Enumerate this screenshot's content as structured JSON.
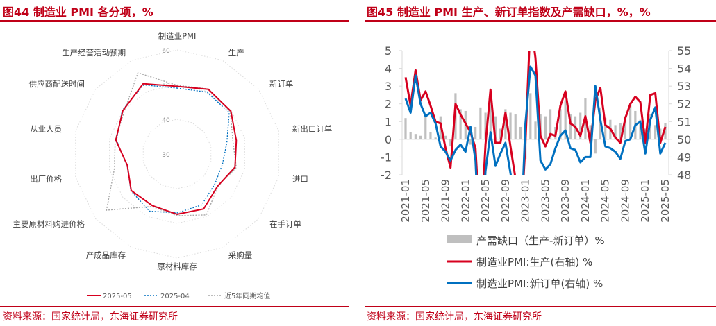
{
  "left": {
    "title": "图44  制造业 PMI 各分项，%",
    "source": "资料来源：国家统计局，东海证券研究所"
  },
  "right": {
    "title": "图45  制造业 PMI 生产、新订单指数及产需缺口，%，%",
    "source": "资料来源：国家统计局，东海证券研究所"
  },
  "colors": {
    "accent": "#c00018",
    "red": "#d7001f",
    "blue": "#0070c0",
    "gray": "#bfbfbf",
    "avg": "#a6a6a6"
  },
  "chart_data": [
    {
      "type": "radar",
      "title": "",
      "axes": [
        "制造业PMI",
        "生产",
        "新订单",
        "新出口订单",
        "进口",
        "在手订单",
        "采购量",
        "原材料库存",
        "产成品库存",
        "主要原材料购进价格",
        "出厂价格",
        "从业人员",
        "供应商配送时间",
        "生产经营活动预期"
      ],
      "range": [
        30,
        60
      ],
      "ticks": [
        "30",
        "40",
        "50",
        "60"
      ],
      "legend_position": "bottom",
      "series": [
        {
          "name": "2025-05",
          "style": "solid",
          "values": [
            49.5,
            50.7,
            49.8,
            47.5,
            47.1,
            44.9,
            47.6,
            47.4,
            46.5,
            46.9,
            44.7,
            48.1,
            50.0,
            52.5
          ]
        },
        {
          "name": "2025-04",
          "style": "dotted",
          "values": [
            49.0,
            49.8,
            49.2,
            44.7,
            43.4,
            43.9,
            46.3,
            47.0,
            48.3,
            47.0,
            44.8,
            47.9,
            50.2,
            52.1
          ]
        },
        {
          "name": "近5年同期均值",
          "style": "dotted",
          "values": [
            49.8,
            50.8,
            49.6,
            46.5,
            47.5,
            45.0,
            49.5,
            47.8,
            46.8,
            56.0,
            48.5,
            48.3,
            49.5,
            56.0
          ]
        }
      ]
    },
    {
      "type": "bar+line",
      "title": "",
      "x": [
        "2021-01",
        "2021-02",
        "2021-03",
        "2021-04",
        "2021-05",
        "2021-06",
        "2021-07",
        "2021-08",
        "2021-09",
        "2021-10",
        "2021-11",
        "2021-12",
        "2022-01",
        "2022-02",
        "2022-03",
        "2022-04",
        "2022-05",
        "2022-06",
        "2022-07",
        "2022-08",
        "2022-09",
        "2022-10",
        "2022-11",
        "2022-12",
        "2023-01",
        "2023-02",
        "2023-03",
        "2023-04",
        "2023-05",
        "2023-06",
        "2023-07",
        "2023-08",
        "2023-09",
        "2023-10",
        "2023-11",
        "2023-12",
        "2024-01",
        "2024-02",
        "2024-03",
        "2024-04",
        "2024-05",
        "2024-06",
        "2024-07",
        "2024-08",
        "2024-09",
        "2024-10",
        "2024-11",
        "2024-12",
        "2025-01",
        "2025-02",
        "2025-03",
        "2025-04",
        "2025-05"
      ],
      "xtick_labels": [
        "2021-01",
        "2021-05",
        "2021-09",
        "2022-01",
        "2022-05",
        "2022-09",
        "2023-01",
        "2023-05",
        "2023-09",
        "2024-01",
        "2024-05",
        "2024-09",
        "2025-01",
        "2025-05"
      ],
      "y_left": {
        "range": [
          -2,
          5
        ],
        "ticks": [
          "-2",
          "-1",
          "0",
          "1",
          "2",
          "3",
          "4",
          "5"
        ]
      },
      "y_right": {
        "range": [
          48,
          55
        ],
        "ticks": [
          "48",
          "49",
          "50",
          "51",
          "52",
          "53",
          "54",
          "55"
        ]
      },
      "legend_position": "bottom",
      "series": [
        {
          "name": "产需缺口（生产-新订单）%",
          "type": "bar",
          "axis": "left",
          "values": [
            1.2,
            0.4,
            0.3,
            0.2,
            1.4,
            0.4,
            0.1,
            1.3,
            0.2,
            -0.4,
            2.6,
            1.7,
            1.6,
            -0.3,
            0.7,
            1.8,
            1.5,
            2.4,
            1.3,
            0.6,
            1.7,
            1.5,
            1.4,
            0.7,
            -1.1,
            2.6,
            1.0,
            1.4,
            1.3,
            1.7,
            0.7,
            1.7,
            2.2,
            1.4,
            1.3,
            1.5,
            2.3,
            0.8,
            -0.8,
            1.8,
            1.2,
            1.1,
            0.8,
            0.9,
            1.3,
            2.0,
            1.6,
            1.1,
            0.6,
            1.4,
            0.8,
            0.6,
            0.9
          ]
        },
        {
          "name": "制造业PMI:生产(右轴) %",
          "type": "line",
          "axis": "right",
          "values": [
            53.5,
            51.9,
            53.9,
            52.2,
            52.7,
            51.9,
            51.0,
            50.9,
            49.5,
            48.4,
            52.0,
            51.4,
            50.9,
            50.4,
            49.5,
            44.4,
            49.7,
            52.8,
            49.8,
            49.8,
            51.5,
            49.6,
            47.8,
            44.6,
            49.8,
            56.7,
            54.6,
            50.2,
            49.6,
            50.3,
            50.2,
            51.9,
            52.7,
            50.9,
            50.7,
            50.2,
            51.3,
            49.8,
            52.2,
            52.9,
            50.8,
            50.6,
            50.1,
            49.8,
            51.2,
            52.0,
            52.4,
            52.1,
            49.8,
            52.5,
            52.6,
            49.8,
            50.7
          ]
        },
        {
          "name": "制造业PMI:新订单(右轴) %",
          "type": "line",
          "axis": "right",
          "values": [
            52.3,
            51.5,
            53.6,
            52.0,
            51.3,
            51.5,
            50.9,
            49.6,
            49.3,
            48.8,
            49.4,
            49.7,
            49.3,
            50.7,
            48.8,
            42.6,
            48.2,
            50.4,
            48.5,
            49.2,
            49.8,
            48.1,
            46.4,
            43.9,
            50.9,
            54.1,
            53.6,
            48.8,
            48.3,
            48.6,
            49.5,
            50.2,
            50.5,
            49.5,
            49.4,
            48.7,
            49.0,
            49.0,
            53.0,
            51.1,
            49.6,
            49.5,
            49.3,
            48.9,
            49.9,
            50.0,
            50.8,
            51.0,
            49.2,
            51.1,
            51.8,
            49.2,
            49.8
          ]
        }
      ]
    }
  ]
}
